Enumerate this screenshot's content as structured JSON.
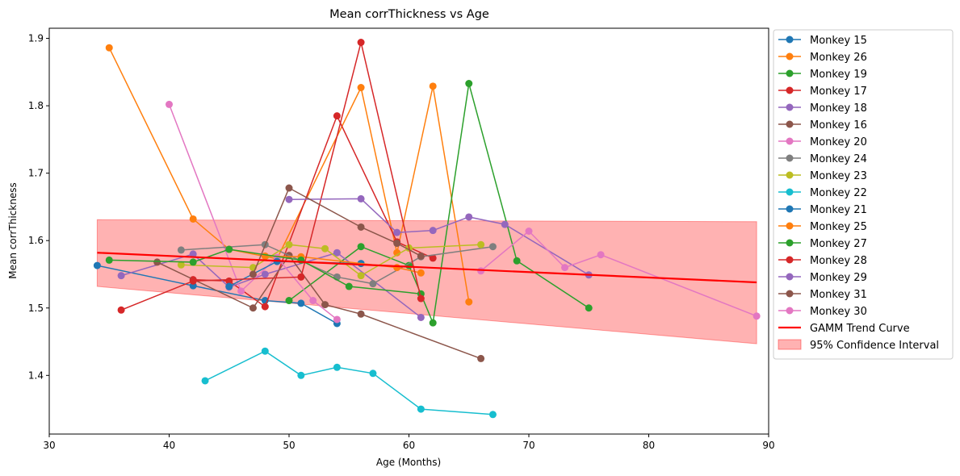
{
  "chart_data": {
    "type": "line",
    "title": "Mean corrThickness vs Age",
    "xlabel": "Age (Months)",
    "ylabel": "Mean corrThickness",
    "xlim": [
      30,
      90
    ],
    "ylim": [
      1.313,
      1.915
    ],
    "xticks": [
      30,
      40,
      50,
      60,
      70,
      80,
      90
    ],
    "yticks": [
      1.4,
      1.5,
      1.6,
      1.7,
      1.8,
      1.9
    ],
    "grid": false,
    "legend_position": "outside-right",
    "series": [
      {
        "name": "Monkey 15",
        "color": "#1f77b4",
        "points": [
          [
            34,
            1.563
          ],
          [
            42,
            1.533
          ],
          [
            48,
            1.511
          ],
          [
            51,
            1.507
          ],
          [
            54,
            1.477
          ]
        ]
      },
      {
        "name": "Monkey 26",
        "color": "#ff7f0e",
        "points": [
          [
            35,
            1.886
          ],
          [
            42,
            1.632
          ],
          [
            45,
            1.587
          ],
          [
            49,
            1.573
          ],
          [
            56,
            1.827
          ],
          [
            59,
            1.582
          ],
          [
            62,
            1.829
          ],
          [
            65,
            1.509
          ]
        ]
      },
      {
        "name": "Monkey 19",
        "color": "#2ca02c",
        "points": [
          [
            50,
            1.511
          ],
          [
            56,
            1.591
          ],
          [
            60,
            1.563
          ],
          [
            62,
            1.478
          ],
          [
            65,
            1.833
          ],
          [
            69,
            1.57
          ],
          [
            75,
            1.5
          ]
        ]
      },
      {
        "name": "Monkey 17",
        "color": "#d62728",
        "points": [
          [
            42,
            1.542
          ],
          [
            45,
            1.54
          ],
          [
            48,
            1.502
          ],
          [
            54,
            1.785
          ],
          [
            59,
            1.598
          ],
          [
            62,
            1.574
          ]
        ]
      },
      {
        "name": "Monkey 18",
        "color": "#9467bd",
        "points": [
          [
            36,
            1.548
          ],
          [
            42,
            1.58
          ],
          [
            45,
            1.531
          ],
          [
            48,
            1.55
          ],
          [
            54,
            1.582
          ],
          [
            61,
            1.486
          ]
        ]
      },
      {
        "name": "Monkey 16",
        "color": "#8c564b",
        "points": [
          [
            39,
            1.568
          ],
          [
            47,
            1.5
          ],
          [
            50,
            1.578
          ],
          [
            53,
            1.505
          ],
          [
            56,
            1.491
          ],
          [
            66,
            1.425
          ]
        ]
      },
      {
        "name": "Monkey 20",
        "color": "#e377c2",
        "points": [
          [
            40,
            1.802
          ],
          [
            46,
            1.525
          ],
          [
            49,
            1.575
          ],
          [
            52,
            1.511
          ],
          [
            54,
            1.483
          ]
        ]
      },
      {
        "name": "Monkey 24",
        "color": "#7f7f7f",
        "points": [
          [
            41,
            1.586
          ],
          [
            48,
            1.594
          ],
          [
            54,
            1.546
          ],
          [
            57,
            1.536
          ],
          [
            61,
            1.576
          ],
          [
            67,
            1.591
          ]
        ]
      },
      {
        "name": "Monkey 23",
        "color": "#bcbd22",
        "points": [
          [
            41,
            1.564
          ],
          [
            47,
            1.56
          ],
          [
            50,
            1.594
          ],
          [
            53,
            1.588
          ],
          [
            56,
            1.548
          ],
          [
            60,
            1.589
          ],
          [
            66,
            1.594
          ]
        ]
      },
      {
        "name": "Monkey 22",
        "color": "#17becf",
        "points": [
          [
            43,
            1.392
          ],
          [
            48,
            1.436
          ],
          [
            51,
            1.4
          ],
          [
            54,
            1.412
          ],
          [
            57,
            1.403
          ],
          [
            61,
            1.35
          ],
          [
            67,
            1.342
          ]
        ]
      },
      {
        "name": "Monkey 21",
        "color": "#1f77b4",
        "points": [
          [
            45,
            1.532
          ],
          [
            49,
            1.569
          ],
          [
            56,
            1.566
          ]
        ]
      },
      {
        "name": "Monkey 25",
        "color": "#ff7f0e",
        "points": [
          [
            48,
            1.577
          ],
          [
            51,
            1.576
          ],
          [
            59,
            1.56
          ],
          [
            61,
            1.552
          ]
        ]
      },
      {
        "name": "Monkey 27",
        "color": "#2ca02c",
        "points": [
          [
            35,
            1.571
          ],
          [
            42,
            1.568
          ],
          [
            45,
            1.587
          ],
          [
            51,
            1.571
          ],
          [
            55,
            1.532
          ],
          [
            61,
            1.521
          ]
        ]
      },
      {
        "name": "Monkey 28",
        "color": "#d62728",
        "points": [
          [
            36,
            1.497
          ],
          [
            42,
            1.54
          ],
          [
            51,
            1.546
          ],
          [
            56,
            1.894
          ],
          [
            61,
            1.514
          ]
        ]
      },
      {
        "name": "Monkey 29",
        "color": "#9467bd",
        "points": [
          [
            50,
            1.661
          ],
          [
            56,
            1.662
          ],
          [
            59,
            1.612
          ],
          [
            62,
            1.615
          ],
          [
            65,
            1.635
          ],
          [
            68,
            1.624
          ],
          [
            75,
            1.549
          ]
        ]
      },
      {
        "name": "Monkey 31",
        "color": "#8c564b",
        "points": [
          [
            47,
            1.55
          ],
          [
            50,
            1.678
          ],
          [
            56,
            1.62
          ],
          [
            59,
            1.596
          ],
          [
            61,
            1.577
          ]
        ]
      },
      {
        "name": "Monkey 30",
        "color": "#e377c2",
        "points": [
          [
            66,
            1.555
          ],
          [
            70,
            1.614
          ],
          [
            73,
            1.56
          ],
          [
            76,
            1.579
          ],
          [
            89,
            1.488
          ]
        ]
      }
    ],
    "trend": {
      "name": "GAMM Trend Curve",
      "color": "#ff0000",
      "x": [
        34,
        89
      ],
      "y": [
        1.582,
        1.538
      ]
    },
    "confidence_band": {
      "name": "95% Confidence Interval",
      "color": "#ff0000",
      "x": [
        34,
        89
      ],
      "lower": [
        1.532,
        1.447
      ],
      "upper": [
        1.631,
        1.628
      ]
    }
  }
}
